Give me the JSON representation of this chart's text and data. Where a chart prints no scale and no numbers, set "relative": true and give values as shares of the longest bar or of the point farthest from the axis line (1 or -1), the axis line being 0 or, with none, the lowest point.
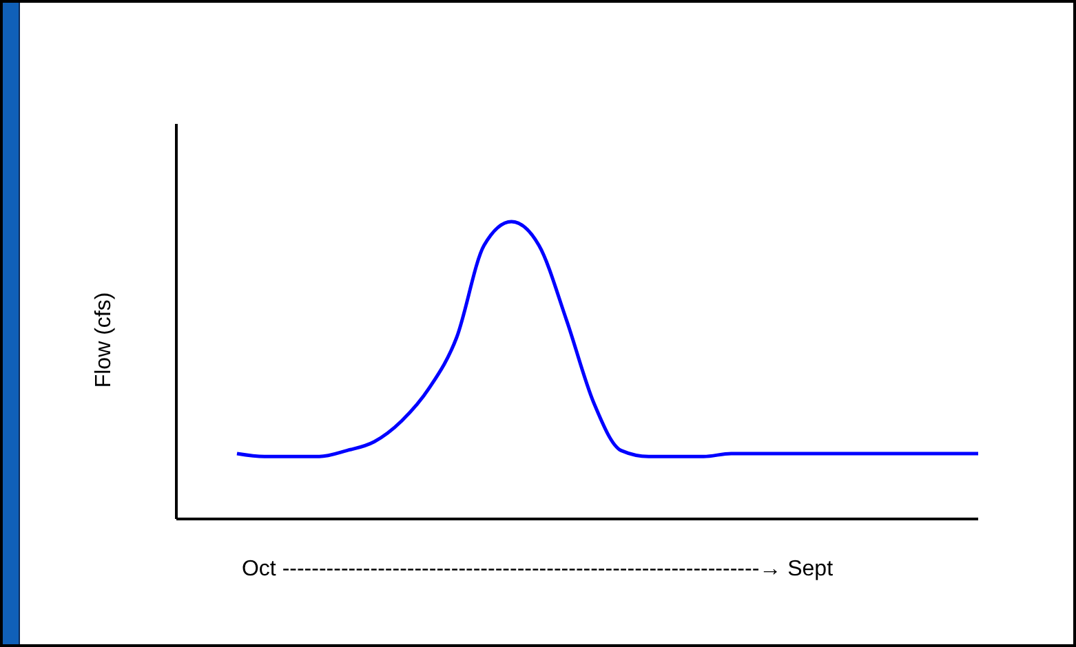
{
  "chart_data": {
    "type": "line",
    "relative": true,
    "xlabel": "Oct -----------------------------------------------------------------→ Sept",
    "ylabel": "Flow (cfs)",
    "categories": [
      null,
      null,
      null,
      null,
      null,
      null,
      null,
      null,
      null,
      null,
      null,
      null,
      null,
      null,
      null,
      null,
      null,
      null,
      null,
      null,
      null,
      null,
      null,
      null,
      null,
      null,
      null,
      null
    ],
    "series": [
      {
        "color": "#0000ff",
        "values": [
          0.22,
          0.21,
          0.21,
          0.21,
          0.23,
          0.26,
          0.33,
          0.44,
          0.61,
          0.92,
          1,
          0.92,
          0.67,
          0.39,
          0.23,
          0.21,
          0.21,
          0.21,
          0.22,
          0.22,
          0.22,
          0.22,
          0.22,
          0.22,
          0.22,
          0.22,
          0.22,
          0.22
        ]
      }
    ],
    "grid": false,
    "marker": "none",
    "line_style": "solid"
  }
}
